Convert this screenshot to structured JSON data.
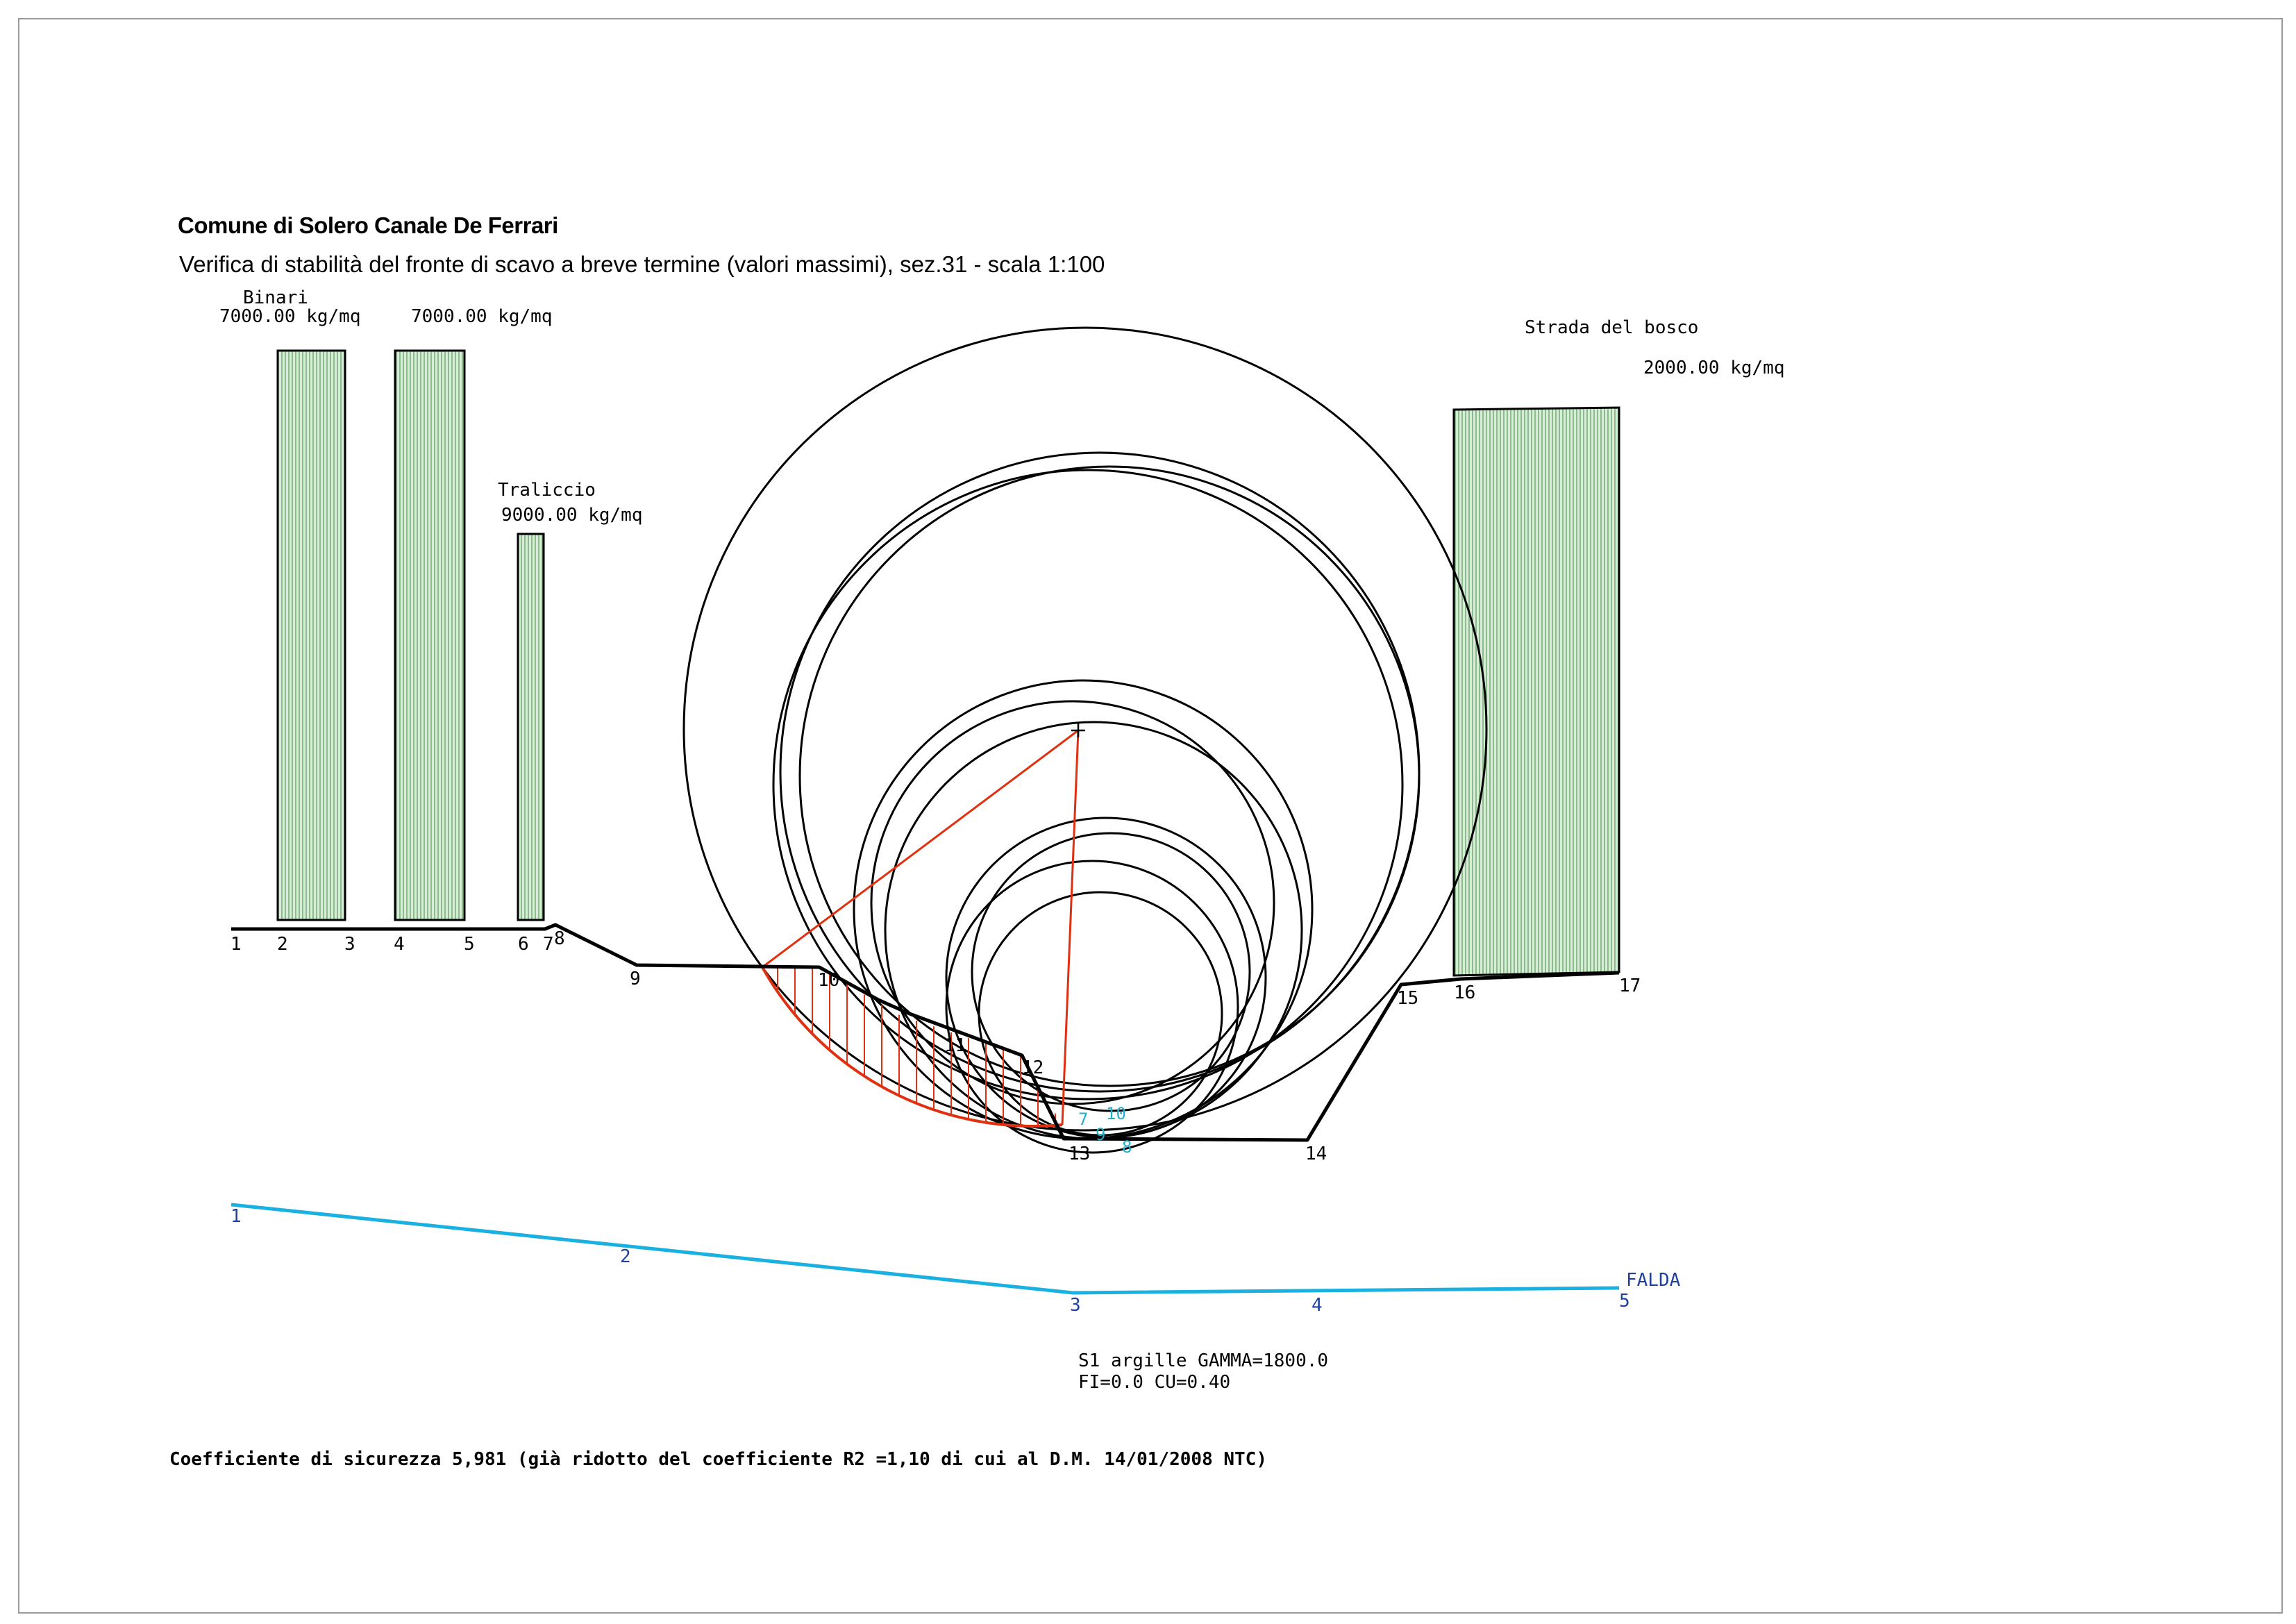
{
  "header": {
    "title": "Comune di Solero Canale De Ferrari",
    "subtitle": "Verifica di stabilità del fronte di scavo a breve termine (valori massimi), sez.31 - scala 1:100"
  },
  "loads": [
    {
      "name": "Binari",
      "value": "7000.00 kg/mq"
    },
    {
      "name": "",
      "value": "7000.00 kg/mq"
    },
    {
      "name": "Traliccio",
      "value": "9000.00 kg/mq"
    },
    {
      "name": "Strada del bosco",
      "value": "2000.00 kg/mq"
    }
  ],
  "profile_points": [
    "1",
    "2",
    "3",
    "4",
    "5",
    "6",
    "7",
    "8",
    "9",
    "10",
    "11",
    "12",
    "13",
    "14",
    "15",
    "16",
    "17"
  ],
  "slip_points": [
    "7",
    "10",
    "9",
    "8"
  ],
  "water_table": {
    "label": "FALDA",
    "points": [
      "1",
      "2",
      "3",
      "4",
      "5"
    ]
  },
  "soil": {
    "line1": "S1 argille GAMMA=1800.0",
    "line2": "FI=0.0  CU=0.40"
  },
  "result": {
    "text": "Coefficiente di sicurezza 5,981 (già ridotto del coefficiente R2 =1,10 di cui al D.M. 14/01/2008 NTC)"
  },
  "colors": {
    "load_fill": "#cfe8cf",
    "load_hatch": "#5f9f5f",
    "slip": "#e03010",
    "water": "#1ab0e0",
    "water_labels": "#2040a0",
    "slip_labels": "#20b0d0"
  }
}
